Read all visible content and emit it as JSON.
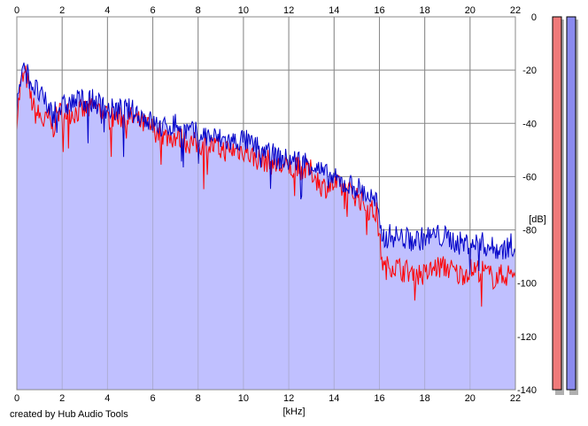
{
  "credit": "created by Hub Audio Tools",
  "colors": {
    "background": "#ffffff",
    "grid": "#888888",
    "fill": "#c0c0ff",
    "left_channel": "#ff0000",
    "right_channel": "#0000c8",
    "meter_left": "#f07a7a",
    "meter_right": "#8a8aef",
    "meter_shadow": "#b0b0b0"
  },
  "chart_data": {
    "type": "line",
    "title": "",
    "xlabel": "[kHz]",
    "ylabel": "[dB]",
    "xlim": [
      0,
      22
    ],
    "ylim": [
      -140,
      0
    ],
    "x_ticks": [
      "0",
      "2",
      "4",
      "6",
      "8",
      "10",
      "12",
      "14",
      "16",
      "18",
      "20",
      "22"
    ],
    "y_ticks": [
      "0",
      "-20",
      "-40",
      "-60",
      "-80",
      "-100",
      "-120",
      "-140"
    ],
    "grid": true,
    "legend": "none",
    "x": [
      0,
      0.2,
      0.4,
      0.6,
      0.8,
      1,
      1.2,
      1.4,
      1.6,
      1.8,
      2,
      2.5,
      3,
      3.5,
      4,
      4.5,
      5,
      5.5,
      6,
      6.5,
      7,
      7.5,
      8,
      8.5,
      9,
      9.5,
      10,
      10.5,
      11,
      11.5,
      12,
      12.5,
      13,
      13.5,
      14,
      14.5,
      15,
      15.5,
      15.9,
      16,
      16.2,
      16.5,
      17,
      17.5,
      18,
      18.5,
      19,
      19.5,
      20,
      20.5,
      21,
      21.5,
      22
    ],
    "series": [
      {
        "color": "#ff0000",
        "values": [
          -38,
          -24,
          -22,
          -30,
          -36,
          -37,
          -40,
          -38,
          -42,
          -36,
          -36,
          -36,
          -35,
          -34,
          -38,
          -38,
          -38,
          -40,
          -42,
          -45,
          -45,
          -47,
          -48,
          -48,
          -50,
          -50,
          -50,
          -53,
          -54,
          -56,
          -57,
          -57,
          -58,
          -64,
          -63,
          -65,
          -67,
          -72,
          -74,
          -84,
          -95,
          -93,
          -95,
          -96,
          -97,
          -94,
          -94,
          -97,
          -95,
          -95,
          -98,
          -97,
          -96
        ]
      },
      {
        "color": "#0000c8",
        "values": [
          -34,
          -22,
          -20,
          -24,
          -27,
          -29,
          -32,
          -34,
          -36,
          -34,
          -34,
          -32,
          -31,
          -32,
          -35,
          -35,
          -35,
          -37,
          -40,
          -42,
          -40,
          -43,
          -44,
          -45,
          -46,
          -47,
          -46,
          -49,
          -50,
          -53,
          -54,
          -54,
          -55,
          -59,
          -61,
          -63,
          -64,
          -67,
          -70,
          -80,
          -83,
          -82,
          -83,
          -84,
          -83,
          -82,
          -83,
          -85,
          -85,
          -85,
          -87,
          -87,
          -85
        ]
      }
    ]
  }
}
